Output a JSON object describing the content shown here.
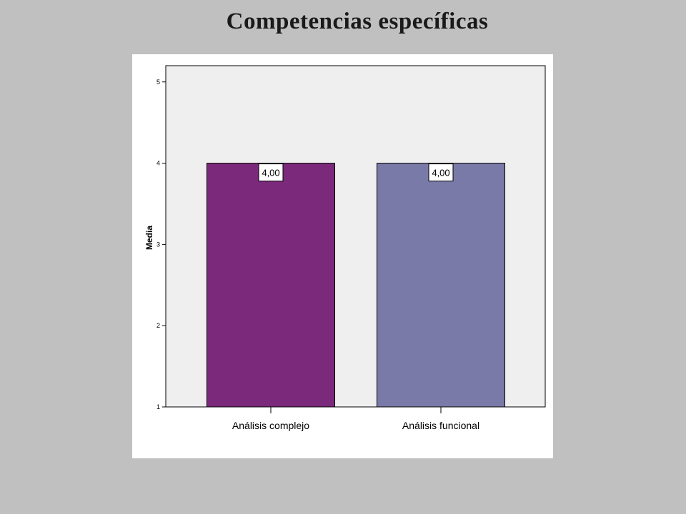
{
  "slide": {
    "title": "Competencias específicas"
  },
  "chart_data": {
    "type": "bar",
    "categories": [
      "Análisis complejo",
      "Análisis funcional"
    ],
    "values": [
      4.0,
      4.0
    ],
    "data_labels": [
      "4,00",
      "4,00"
    ],
    "bar_colors": [
      "#7b2a7b",
      "#7a7aa8"
    ],
    "plot_background": "#efefef",
    "title": "Competencias específicas",
    "xlabel": "",
    "ylabel": "Media",
    "ylim": [
      1,
      5.2
    ],
    "yticks": [
      1,
      2,
      3,
      4,
      5
    ],
    "ytick_labels": [
      "1",
      "2",
      "3",
      "4",
      "5"
    ],
    "grid": false,
    "legend": "none"
  }
}
